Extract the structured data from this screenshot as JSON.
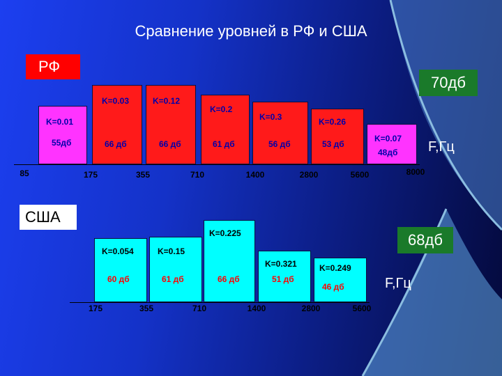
{
  "title": "Сравнение уровней в РФ и США",
  "colors": {
    "rf_bar": "#ff1a1a",
    "us_bar": "#00ffff",
    "magenta": "#ff33ff",
    "label_red": "#ff0000",
    "label_green": "#1a7a2a",
    "curve": "#8bbde0"
  },
  "rf": {
    "label": "РФ",
    "max_level": "70дб",
    "freq_label": "F,Гц",
    "ticks": [
      "85",
      "175",
      "355",
      "710",
      "1400",
      "2800",
      "5600",
      "8000"
    ],
    "bars": [
      {
        "k": "K=0.01",
        "db": "55дб"
      },
      {
        "k": "K=0.03",
        "db": "66 дб"
      },
      {
        "k": "K=0.12",
        "db": "66 дб"
      },
      {
        "k": "K=0.2",
        "db": "61 дб"
      },
      {
        "k": "K=0.3",
        "db": "56 дб"
      },
      {
        "k": "K=0.26",
        "db": "53 дб"
      },
      {
        "k": "K=0.07",
        "db": "48дб"
      }
    ]
  },
  "us": {
    "label": "США",
    "max_level": "68дб",
    "freq_label": "F,Гц",
    "ticks": [
      "175",
      "355",
      "710",
      "1400",
      "2800",
      "5600"
    ],
    "bars": [
      {
        "k": "K=0.054",
        "db": "60 дб"
      },
      {
        "k": "K=0.15",
        "db": "61 дб"
      },
      {
        "k": "K=0.225",
        "db": "66 дб"
      },
      {
        "k": "K=0.321",
        "db": "51 дб"
      },
      {
        "k": "K=0.249",
        "db": "46 дб"
      }
    ]
  }
}
